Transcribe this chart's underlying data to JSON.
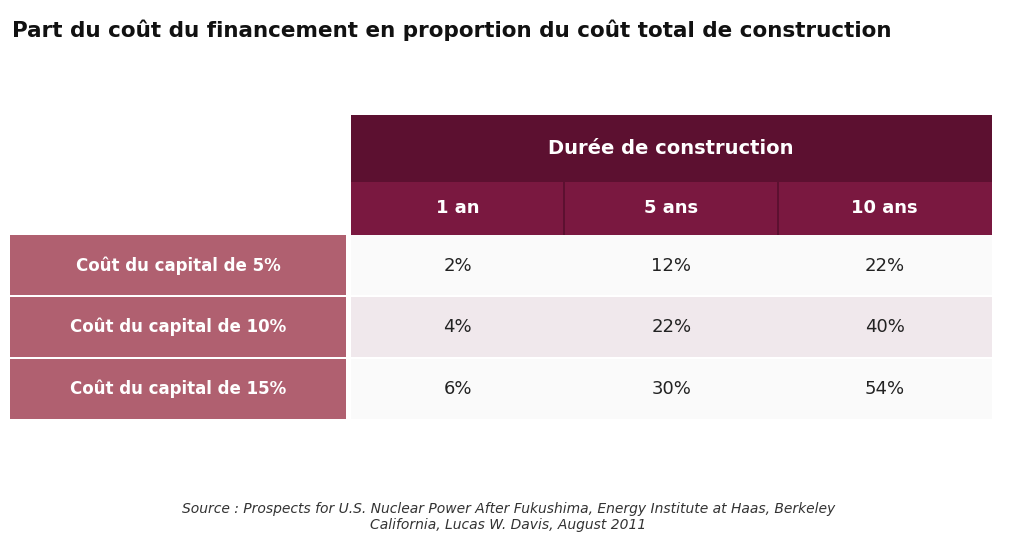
{
  "title": "Part du coût du financement en proportion du coût total de construction",
  "title_fontsize": 15.5,
  "header_main_text": "Durée de construction",
  "header_main_color": "#5C1030",
  "header_sub_color": "#7A1840",
  "col_headers": [
    "1 an",
    "5 ans",
    "10 ans"
  ],
  "row_headers": [
    "Coût du capital de 5%",
    "Coût du capital de 10%",
    "Coût du capital de 15%"
  ],
  "row_header_color": "#B06070",
  "data": [
    [
      "2%",
      "12%",
      "22%"
    ],
    [
      "4%",
      "22%",
      "40%"
    ],
    [
      "6%",
      "30%",
      "54%"
    ]
  ],
  "cell_bg_light": "#F0E8EC",
  "cell_bg_white": "#FAFAFA",
  "source_text": "Source : Prospects for U.S. Nuclear Power After Fukushima, Energy Institute at Haas, Berkeley\nCalifornia, Lucas W. Davis, August 2011",
  "bg_color": "#FFFFFF",
  "data_fontsize": 13,
  "row_header_fontsize": 12,
  "col_header_fontsize": 13,
  "main_header_fontsize": 14
}
